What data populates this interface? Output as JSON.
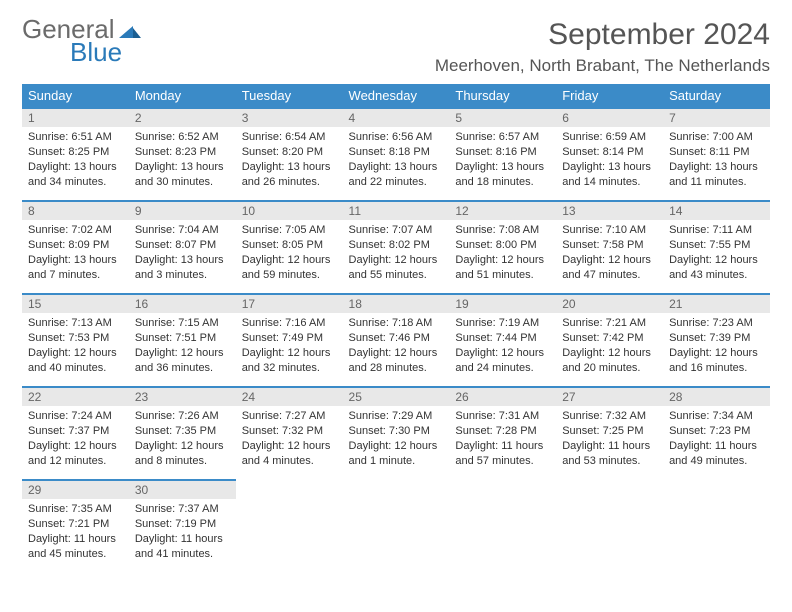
{
  "logo": {
    "line1": "General",
    "line2": "Blue"
  },
  "title": "September 2024",
  "location": "Meerhoven, North Brabant, The Netherlands",
  "colors": {
    "header_bg": "#3b8bc8",
    "header_text": "#ffffff",
    "daynum_bg": "#e8e8e8",
    "border": "#3b8bc8",
    "text": "#333333",
    "logo_gray": "#6b6b6b",
    "logo_blue": "#2a7ab9"
  },
  "weekdays": [
    "Sunday",
    "Monday",
    "Tuesday",
    "Wednesday",
    "Thursday",
    "Friday",
    "Saturday"
  ],
  "weeks": [
    [
      {
        "day": "1",
        "sunrise": "Sunrise: 6:51 AM",
        "sunset": "Sunset: 8:25 PM",
        "day1": "Daylight: 13 hours",
        "day2": "and 34 minutes."
      },
      {
        "day": "2",
        "sunrise": "Sunrise: 6:52 AM",
        "sunset": "Sunset: 8:23 PM",
        "day1": "Daylight: 13 hours",
        "day2": "and 30 minutes."
      },
      {
        "day": "3",
        "sunrise": "Sunrise: 6:54 AM",
        "sunset": "Sunset: 8:20 PM",
        "day1": "Daylight: 13 hours",
        "day2": "and 26 minutes."
      },
      {
        "day": "4",
        "sunrise": "Sunrise: 6:56 AM",
        "sunset": "Sunset: 8:18 PM",
        "day1": "Daylight: 13 hours",
        "day2": "and 22 minutes."
      },
      {
        "day": "5",
        "sunrise": "Sunrise: 6:57 AM",
        "sunset": "Sunset: 8:16 PM",
        "day1": "Daylight: 13 hours",
        "day2": "and 18 minutes."
      },
      {
        "day": "6",
        "sunrise": "Sunrise: 6:59 AM",
        "sunset": "Sunset: 8:14 PM",
        "day1": "Daylight: 13 hours",
        "day2": "and 14 minutes."
      },
      {
        "day": "7",
        "sunrise": "Sunrise: 7:00 AM",
        "sunset": "Sunset: 8:11 PM",
        "day1": "Daylight: 13 hours",
        "day2": "and 11 minutes."
      }
    ],
    [
      {
        "day": "8",
        "sunrise": "Sunrise: 7:02 AM",
        "sunset": "Sunset: 8:09 PM",
        "day1": "Daylight: 13 hours",
        "day2": "and 7 minutes."
      },
      {
        "day": "9",
        "sunrise": "Sunrise: 7:04 AM",
        "sunset": "Sunset: 8:07 PM",
        "day1": "Daylight: 13 hours",
        "day2": "and 3 minutes."
      },
      {
        "day": "10",
        "sunrise": "Sunrise: 7:05 AM",
        "sunset": "Sunset: 8:05 PM",
        "day1": "Daylight: 12 hours",
        "day2": "and 59 minutes."
      },
      {
        "day": "11",
        "sunrise": "Sunrise: 7:07 AM",
        "sunset": "Sunset: 8:02 PM",
        "day1": "Daylight: 12 hours",
        "day2": "and 55 minutes."
      },
      {
        "day": "12",
        "sunrise": "Sunrise: 7:08 AM",
        "sunset": "Sunset: 8:00 PM",
        "day1": "Daylight: 12 hours",
        "day2": "and 51 minutes."
      },
      {
        "day": "13",
        "sunrise": "Sunrise: 7:10 AM",
        "sunset": "Sunset: 7:58 PM",
        "day1": "Daylight: 12 hours",
        "day2": "and 47 minutes."
      },
      {
        "day": "14",
        "sunrise": "Sunrise: 7:11 AM",
        "sunset": "Sunset: 7:55 PM",
        "day1": "Daylight: 12 hours",
        "day2": "and 43 minutes."
      }
    ],
    [
      {
        "day": "15",
        "sunrise": "Sunrise: 7:13 AM",
        "sunset": "Sunset: 7:53 PM",
        "day1": "Daylight: 12 hours",
        "day2": "and 40 minutes."
      },
      {
        "day": "16",
        "sunrise": "Sunrise: 7:15 AM",
        "sunset": "Sunset: 7:51 PM",
        "day1": "Daylight: 12 hours",
        "day2": "and 36 minutes."
      },
      {
        "day": "17",
        "sunrise": "Sunrise: 7:16 AM",
        "sunset": "Sunset: 7:49 PM",
        "day1": "Daylight: 12 hours",
        "day2": "and 32 minutes."
      },
      {
        "day": "18",
        "sunrise": "Sunrise: 7:18 AM",
        "sunset": "Sunset: 7:46 PM",
        "day1": "Daylight: 12 hours",
        "day2": "and 28 minutes."
      },
      {
        "day": "19",
        "sunrise": "Sunrise: 7:19 AM",
        "sunset": "Sunset: 7:44 PM",
        "day1": "Daylight: 12 hours",
        "day2": "and 24 minutes."
      },
      {
        "day": "20",
        "sunrise": "Sunrise: 7:21 AM",
        "sunset": "Sunset: 7:42 PM",
        "day1": "Daylight: 12 hours",
        "day2": "and 20 minutes."
      },
      {
        "day": "21",
        "sunrise": "Sunrise: 7:23 AM",
        "sunset": "Sunset: 7:39 PM",
        "day1": "Daylight: 12 hours",
        "day2": "and 16 minutes."
      }
    ],
    [
      {
        "day": "22",
        "sunrise": "Sunrise: 7:24 AM",
        "sunset": "Sunset: 7:37 PM",
        "day1": "Daylight: 12 hours",
        "day2": "and 12 minutes."
      },
      {
        "day": "23",
        "sunrise": "Sunrise: 7:26 AM",
        "sunset": "Sunset: 7:35 PM",
        "day1": "Daylight: 12 hours",
        "day2": "and 8 minutes."
      },
      {
        "day": "24",
        "sunrise": "Sunrise: 7:27 AM",
        "sunset": "Sunset: 7:32 PM",
        "day1": "Daylight: 12 hours",
        "day2": "and 4 minutes."
      },
      {
        "day": "25",
        "sunrise": "Sunrise: 7:29 AM",
        "sunset": "Sunset: 7:30 PM",
        "day1": "Daylight: 12 hours",
        "day2": "and 1 minute."
      },
      {
        "day": "26",
        "sunrise": "Sunrise: 7:31 AM",
        "sunset": "Sunset: 7:28 PM",
        "day1": "Daylight: 11 hours",
        "day2": "and 57 minutes."
      },
      {
        "day": "27",
        "sunrise": "Sunrise: 7:32 AM",
        "sunset": "Sunset: 7:25 PM",
        "day1": "Daylight: 11 hours",
        "day2": "and 53 minutes."
      },
      {
        "day": "28",
        "sunrise": "Sunrise: 7:34 AM",
        "sunset": "Sunset: 7:23 PM",
        "day1": "Daylight: 11 hours",
        "day2": "and 49 minutes."
      }
    ],
    [
      {
        "day": "29",
        "sunrise": "Sunrise: 7:35 AM",
        "sunset": "Sunset: 7:21 PM",
        "day1": "Daylight: 11 hours",
        "day2": "and 45 minutes."
      },
      {
        "day": "30",
        "sunrise": "Sunrise: 7:37 AM",
        "sunset": "Sunset: 7:19 PM",
        "day1": "Daylight: 11 hours",
        "day2": "and 41 minutes."
      },
      null,
      null,
      null,
      null,
      null
    ]
  ]
}
